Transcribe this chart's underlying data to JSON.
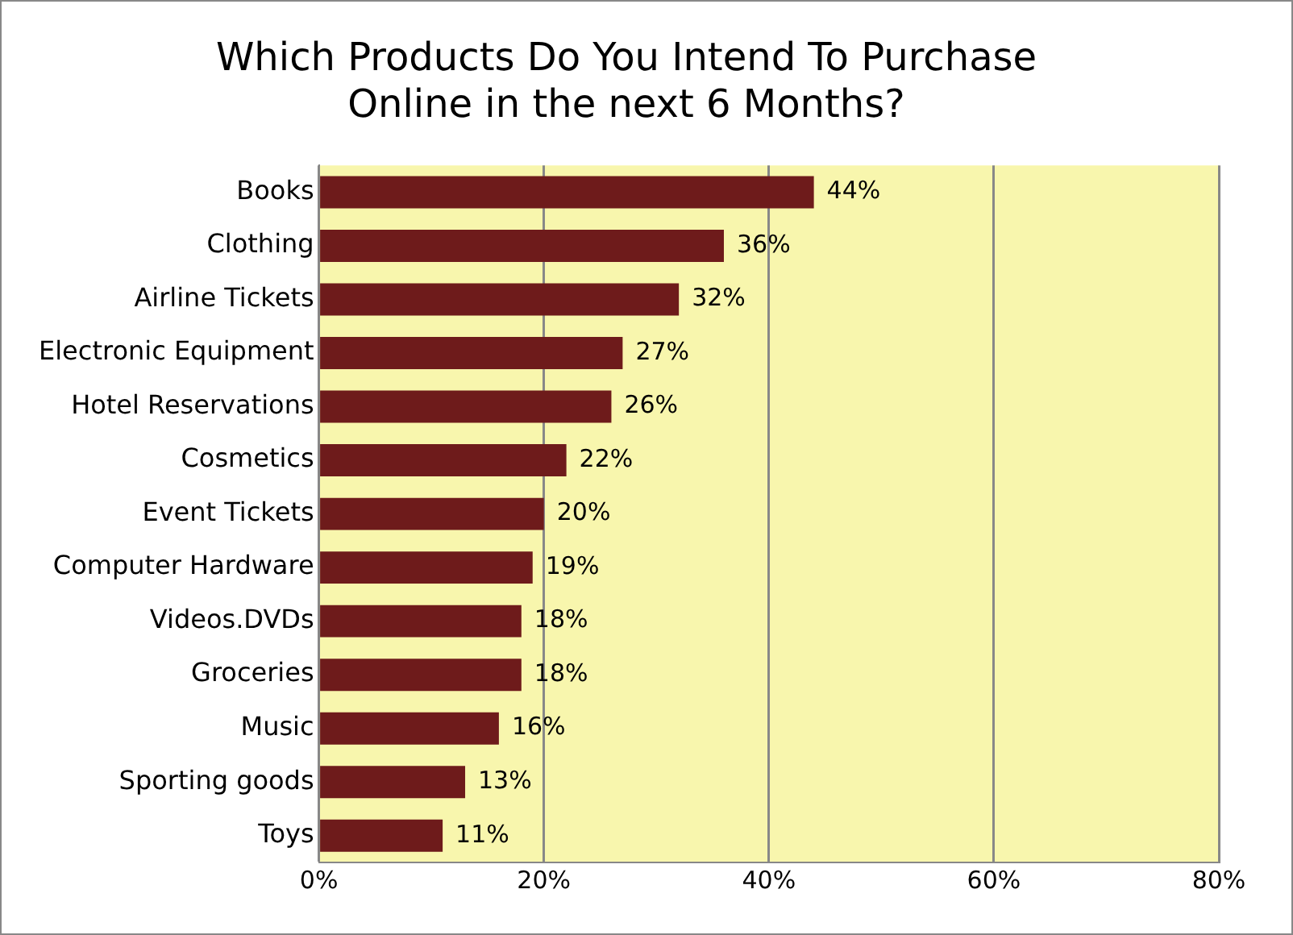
{
  "chart_data": {
    "type": "bar",
    "orientation": "horizontal",
    "title": "Which Products Do You Intend To Purchase\nOnline in the next 6 Months?",
    "categories": [
      "Books",
      "Clothing",
      "Airline Tickets",
      "Electronic Equipment",
      "Hotel Reservations",
      "Cosmetics",
      "Event Tickets",
      "Computer Hardware",
      "Videos.DVDs",
      "Groceries",
      "Music",
      "Sporting goods",
      "Toys"
    ],
    "values": [
      44,
      36,
      32,
      27,
      26,
      22,
      20,
      19,
      18,
      18,
      16,
      13,
      11
    ],
    "value_labels": [
      "44%",
      "36%",
      "32%",
      "27%",
      "26%",
      "22%",
      "20%",
      "19%",
      "18%",
      "18%",
      "16%",
      "13%",
      "11%"
    ],
    "color": "#6e1b1b",
    "xlim": [
      0,
      80
    ],
    "xticks": [
      {
        "value": 0,
        "label": "0%"
      },
      {
        "value": 20,
        "label": "20%"
      },
      {
        "value": 40,
        "label": "40%"
      },
      {
        "value": 60,
        "label": "60%"
      },
      {
        "value": 80,
        "label": "80%"
      }
    ],
    "grid": "x",
    "legend": false
  }
}
